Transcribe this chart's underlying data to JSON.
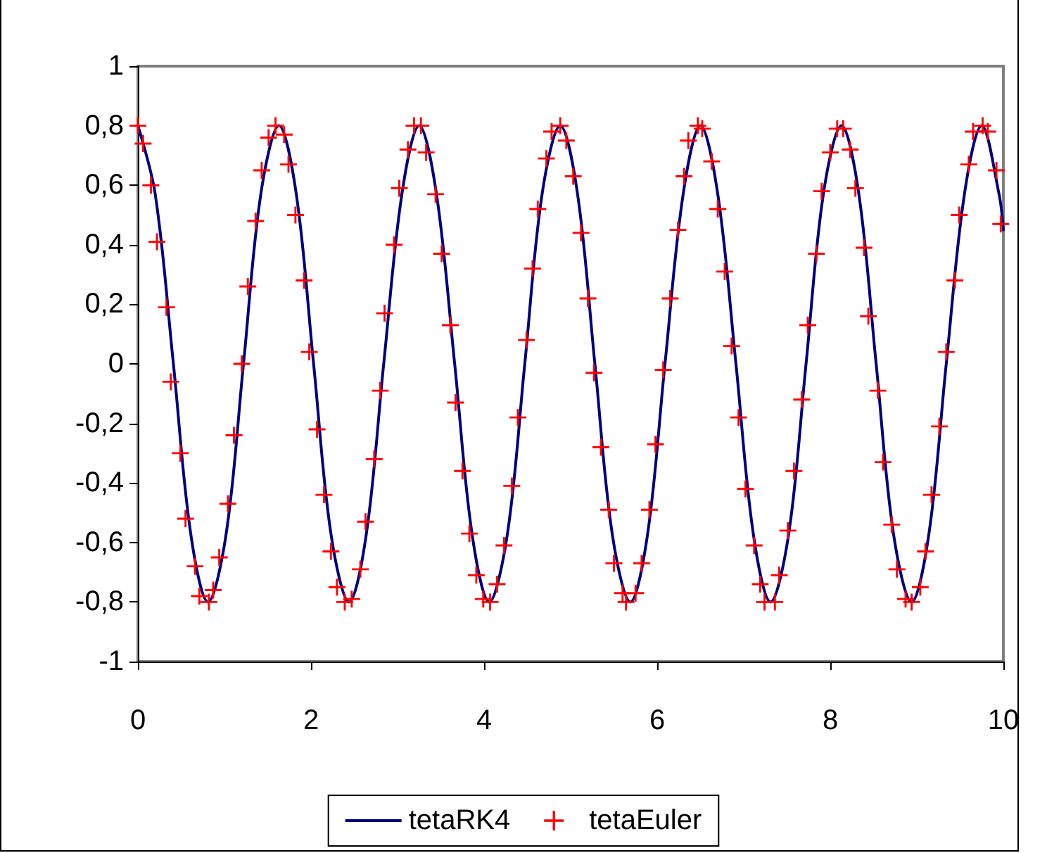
{
  "chart_data": {
    "type": "line",
    "xlim": [
      0,
      10
    ],
    "xticks": [
      0,
      2,
      4,
      6,
      8,
      10
    ],
    "ylim": [
      -1,
      1
    ],
    "yticks": [
      -1,
      {
        "value": -0.8,
        "label": "-0,8"
      },
      {
        "value": -0.6,
        "label": "-0,6"
      },
      {
        "value": -0.4,
        "label": "-0,4"
      },
      {
        "value": -0.2,
        "label": "-0,2"
      },
      0,
      {
        "value": 0.2,
        "label": "0,2"
      },
      {
        "value": 0.4,
        "label": "0,4"
      },
      {
        "value": 0.6,
        "label": "0,6"
      },
      {
        "value": 0.8,
        "label": "0,8"
      },
      1
    ],
    "grid": false,
    "legend": "bottom",
    "series": [
      {
        "name": "tetaRK4",
        "color": "#000080",
        "marker": "none",
        "line_style": "solid",
        "x": [
          0,
          0.2,
          0.41,
          0.61,
          0.81,
          1.02,
          1.22,
          1.42,
          1.63,
          1.83,
          2.03,
          2.23,
          2.44,
          2.64,
          2.84,
          3.05,
          3.25,
          3.45,
          3.66,
          3.86,
          4.06,
          4.27,
          4.47,
          4.67,
          4.88,
          5.08,
          5.28,
          5.48,
          5.69,
          5.89,
          6.09,
          6.3,
          6.5,
          6.7,
          6.91,
          7.11,
          7.31,
          7.52,
          7.72,
          7.92,
          8.13,
          8.33,
          8.53,
          8.73,
          8.94,
          9.14,
          9.34,
          9.55,
          9.75,
          9.95,
          10
        ],
        "values": [
          0.8,
          0.57,
          0,
          -0.57,
          -0.8,
          -0.57,
          0,
          0.57,
          0.8,
          0.57,
          0,
          -0.57,
          -0.8,
          -0.57,
          0,
          0.57,
          0.8,
          0.57,
          0,
          -0.57,
          -0.8,
          -0.57,
          0,
          0.57,
          0.8,
          0.57,
          0,
          -0.57,
          -0.8,
          -0.57,
          0,
          0.57,
          0.8,
          0.57,
          0,
          -0.57,
          -0.8,
          -0.57,
          0,
          0.57,
          0.8,
          0.57,
          0,
          -0.57,
          -0.8,
          -0.57,
          0,
          0.57,
          0.8,
          0.57,
          0.45
        ]
      },
      {
        "name": "tetaEuler",
        "type": "scatter",
        "color": "#ff0000",
        "marker": "cross",
        "x": [
          0,
          0.06,
          0.15,
          0.22,
          0.33,
          0.38,
          0.49,
          0.55,
          0.66,
          0.71,
          0.82,
          0.87,
          0.94,
          1.04,
          1.11,
          1.2,
          1.27,
          1.36,
          1.43,
          1.51,
          1.59,
          1.69,
          1.74,
          1.82,
          1.92,
          1.98,
          2.07,
          2.15,
          2.23,
          2.3,
          2.39,
          2.47,
          2.57,
          2.63,
          2.73,
          2.8,
          2.85,
          2.96,
          3.02,
          3.12,
          3.19,
          3.27,
          3.33,
          3.44,
          3.51,
          3.61,
          3.67,
          3.75,
          3.83,
          3.91,
          3.99,
          4.07,
          4.15,
          4.23,
          4.32,
          4.39,
          4.49,
          4.56,
          4.62,
          4.72,
          4.78,
          4.88,
          4.95,
          5.03,
          5.12,
          5.2,
          5.27,
          5.35,
          5.44,
          5.5,
          5.6,
          5.64,
          5.75,
          5.82,
          5.91,
          5.98,
          6.07,
          6.15,
          6.24,
          6.31,
          6.36,
          6.47,
          6.52,
          6.63,
          6.7,
          6.78,
          6.86,
          6.94,
          7.02,
          7.12,
          7.19,
          7.24,
          7.36,
          7.41,
          7.51,
          7.58,
          7.67,
          7.74,
          7.84,
          7.9,
          8,
          8.08,
          8.15,
          8.23,
          8.29,
          8.39,
          8.44,
          8.55,
          8.61,
          8.71,
          8.77,
          8.87,
          8.94,
          9.04,
          9.1,
          9.17,
          9.26,
          9.34,
          9.44,
          9.49,
          9.6,
          9.65,
          9.76,
          9.82,
          9.92,
          9.97
        ],
        "values": [
          0.8,
          0.74,
          0.6,
          0.41,
          0.19,
          -0.06,
          -0.3,
          -0.52,
          -0.68,
          -0.78,
          -0.8,
          -0.76,
          -0.65,
          -0.47,
          -0.24,
          0,
          0.26,
          0.48,
          0.65,
          0.76,
          0.8,
          0.77,
          0.67,
          0.5,
          0.28,
          0.04,
          -0.22,
          -0.44,
          -0.63,
          -0.75,
          -0.8,
          -0.79,
          -0.69,
          -0.53,
          -0.32,
          -0.09,
          0.17,
          0.4,
          0.59,
          0.72,
          0.8,
          0.8,
          0.71,
          0.57,
          0.37,
          0.13,
          -0.13,
          -0.36,
          -0.57,
          -0.71,
          -0.79,
          -0.8,
          -0.74,
          -0.61,
          -0.41,
          -0.18,
          0.08,
          0.32,
          0.52,
          0.69,
          0.78,
          0.8,
          0.75,
          0.63,
          0.44,
          0.22,
          -0.03,
          -0.28,
          -0.49,
          -0.67,
          -0.77,
          -0.8,
          -0.77,
          -0.67,
          -0.49,
          -0.27,
          -0.02,
          0.22,
          0.45,
          0.63,
          0.75,
          0.8,
          0.79,
          0.68,
          0.52,
          0.31,
          0.06,
          -0.18,
          -0.42,
          -0.61,
          -0.74,
          -0.8,
          -0.8,
          -0.71,
          -0.56,
          -0.36,
          -0.12,
          0.13,
          0.37,
          0.58,
          0.71,
          0.79,
          0.79,
          0.72,
          0.59,
          0.39,
          0.16,
          -0.09,
          -0.33,
          -0.54,
          -0.69,
          -0.79,
          -0.8,
          -0.75,
          -0.63,
          -0.44,
          -0.21,
          0.04,
          0.28,
          0.5,
          0.67,
          0.78,
          0.8,
          0.78,
          0.65,
          0.47
        ]
      }
    ]
  }
}
